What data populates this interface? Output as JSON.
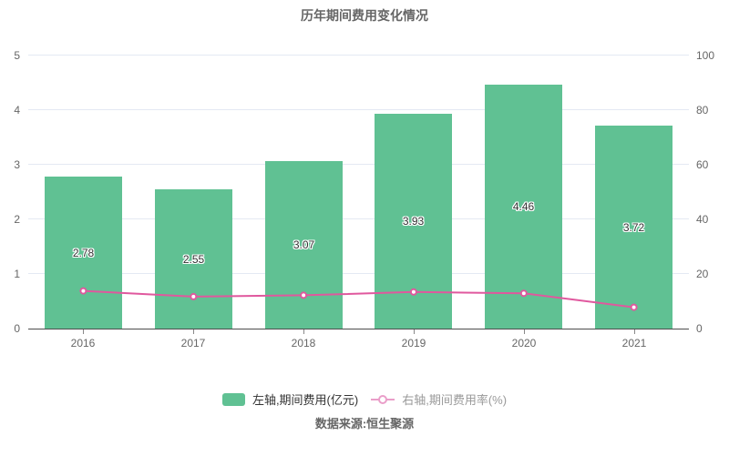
{
  "chart_data": {
    "type": "bar",
    "title": "历年期间费用变化情况",
    "categories": [
      "2016",
      "2017",
      "2018",
      "2019",
      "2020",
      "2021"
    ],
    "series": [
      {
        "name": "左轴,期间费用(亿元)",
        "type": "bar",
        "axis": "left",
        "values": [
          2.78,
          2.55,
          3.07,
          3.93,
          4.46,
          3.72
        ],
        "data_labels": [
          "2.78",
          "2.55",
          "3.07",
          "3.93",
          "4.46",
          "3.72"
        ],
        "color": "#60c193"
      },
      {
        "name": "右轴,期间费用率(%)",
        "type": "line",
        "axis": "right",
        "values": [
          13.8,
          11.7,
          12.2,
          13.4,
          12.9,
          7.8
        ],
        "color": "#e0589e",
        "marker": "circle"
      }
    ],
    "left_axis": {
      "range": [
        0,
        5
      ],
      "ticks": [
        "0",
        "1",
        "2",
        "3",
        "4",
        "5"
      ]
    },
    "right_axis": {
      "range": [
        0,
        100
      ],
      "ticks": [
        "0",
        "20",
        "40",
        "60",
        "80",
        "100"
      ]
    },
    "grid": true,
    "legend_position": "bottom",
    "source": "数据来源:恒生聚源",
    "colors": {
      "bar": "#60c193",
      "line": "#e0589e",
      "legend_line_icon": "#ea9ec9",
      "grid_line": "#e4e9f3",
      "axis_line": "#4d4d4d",
      "tick_text": "#666666",
      "title_text": "#666666",
      "bar_label_text": "#333333",
      "legend_text_bar": "#333333",
      "legend_text_line": "#999999",
      "source_text": "#666666",
      "background": "#ffffff"
    }
  }
}
